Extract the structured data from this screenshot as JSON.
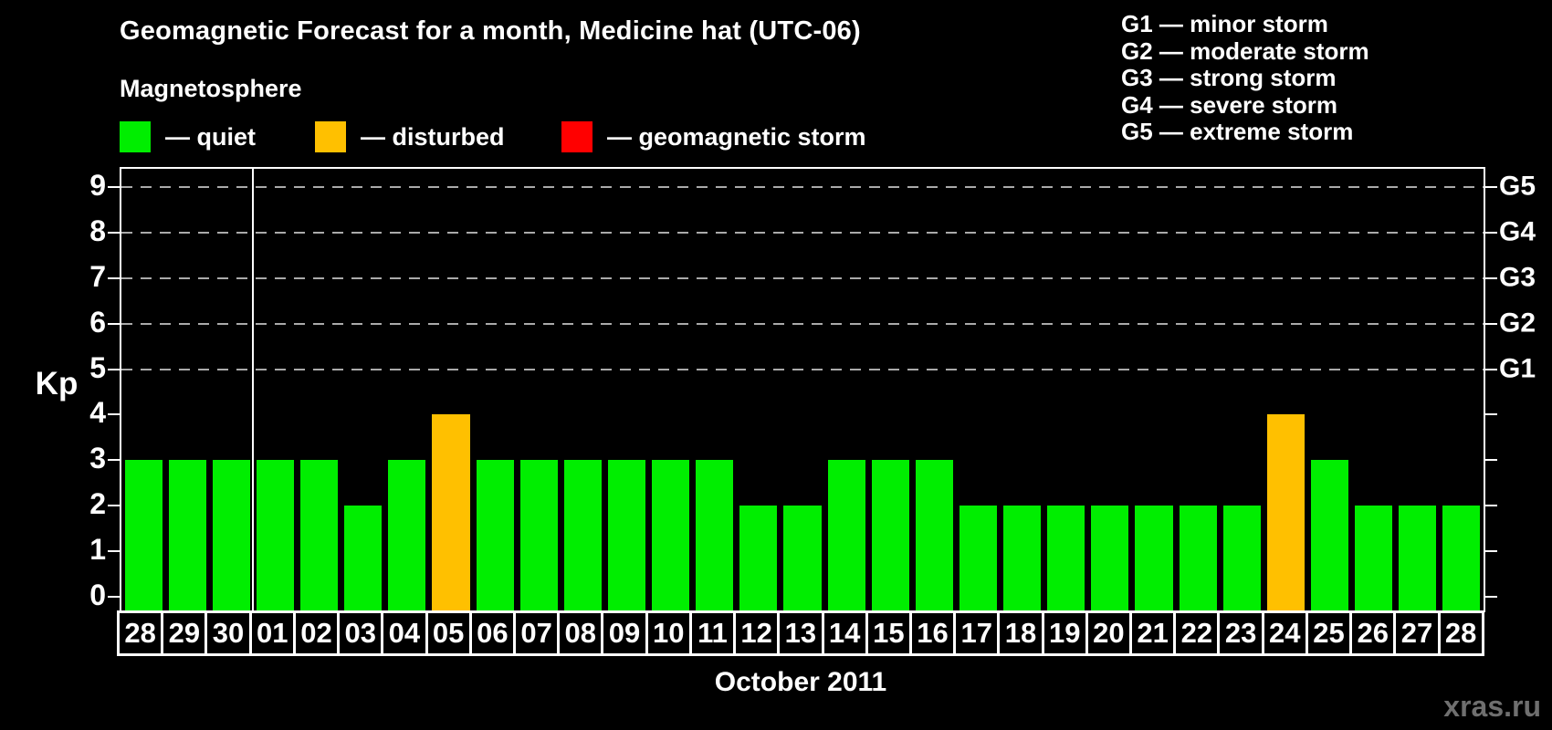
{
  "header": {
    "title": "Geomagnetic Forecast for a month, Medicine hat (UTC-06)",
    "subtitle": "Magnetosphere"
  },
  "magnetosphere_legend": [
    {
      "label": "— quiet",
      "color": "#00ee00"
    },
    {
      "label": "— disturbed",
      "color": "#ffc000"
    },
    {
      "label": "— geomagnetic storm",
      "color": "#ff0000"
    }
  ],
  "gscale_legend": [
    "G1 — minor storm",
    "G2 — moderate storm",
    "G3 — strong storm",
    "G4 — severe storm",
    "G5 — extreme storm"
  ],
  "watermark": "xras.ru",
  "chart_data": {
    "type": "bar",
    "title": "Geomagnetic Forecast for a month, Medicine hat (UTC-06)",
    "ylabel": "Kp",
    "xlabel": "October 2011",
    "ylim": [
      0,
      9
    ],
    "yticks": [
      0,
      1,
      2,
      3,
      4,
      5,
      6,
      7,
      8,
      9
    ],
    "grid_levels": [
      5,
      6,
      7,
      8,
      9
    ],
    "right_axis": [
      {
        "value": 5,
        "label": "G1"
      },
      {
        "value": 6,
        "label": "G2"
      },
      {
        "value": 7,
        "label": "G3"
      },
      {
        "value": 8,
        "label": "G4"
      },
      {
        "value": 9,
        "label": "G5"
      }
    ],
    "categories": [
      "28",
      "29",
      "30",
      "01",
      "02",
      "03",
      "04",
      "05",
      "06",
      "07",
      "08",
      "09",
      "10",
      "11",
      "12",
      "13",
      "14",
      "15",
      "16",
      "17",
      "18",
      "19",
      "20",
      "21",
      "22",
      "23",
      "24",
      "25",
      "26",
      "27",
      "28"
    ],
    "values": [
      3,
      3,
      3,
      3,
      3,
      2,
      3,
      4,
      3,
      3,
      3,
      3,
      3,
      3,
      2,
      2,
      3,
      3,
      3,
      2,
      2,
      2,
      2,
      2,
      2,
      2,
      4,
      3,
      2,
      2,
      2
    ],
    "statuses": [
      "quiet",
      "quiet",
      "quiet",
      "quiet",
      "quiet",
      "quiet",
      "quiet",
      "disturbed",
      "quiet",
      "quiet",
      "quiet",
      "quiet",
      "quiet",
      "quiet",
      "quiet",
      "quiet",
      "quiet",
      "quiet",
      "quiet",
      "quiet",
      "quiet",
      "quiet",
      "quiet",
      "quiet",
      "quiet",
      "quiet",
      "disturbed",
      "quiet",
      "quiet",
      "quiet",
      "quiet"
    ],
    "status_colors": {
      "quiet": "#00ee00",
      "disturbed": "#ffc000",
      "storm": "#ff0000"
    },
    "month_separator_after_index": 2,
    "grid": true,
    "legend_position": "top-left-and-top-right"
  }
}
